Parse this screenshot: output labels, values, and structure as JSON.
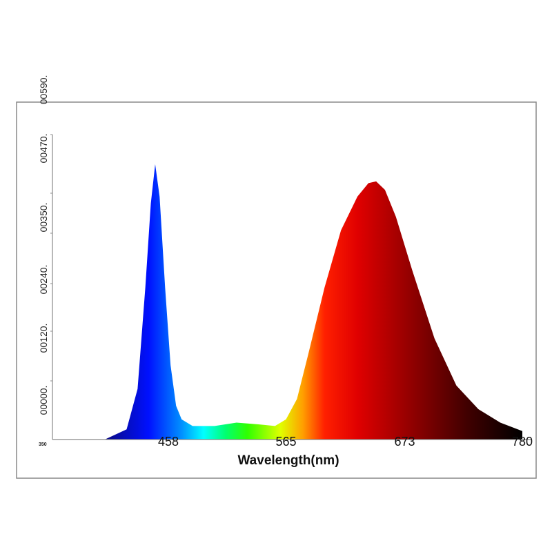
{
  "chart_data": {
    "type": "area",
    "title": "",
    "xlabel": "Wavelength(nm)",
    "ylabel": "",
    "xlim": [
      350,
      780
    ],
    "ylim": [
      0,
      1
    ],
    "grid": false,
    "x_ticks": [
      "458",
      "565",
      "673",
      "780"
    ],
    "x_tick_values": [
      458,
      565,
      673,
      780
    ],
    "x_min_label": "350",
    "y_ticks": [
      "00000.",
      "00120.",
      "00240.",
      "00350.",
      "00470.",
      "00590."
    ],
    "series": [
      {
        "x": [
          350,
          400,
          420,
          430,
          437,
          442,
          446,
          450,
          455,
          460,
          465,
          470,
          480,
          500,
          520,
          540,
          555,
          565,
          575,
          585,
          600,
          615,
          630,
          640,
          647,
          655,
          665,
          680,
          700,
          720,
          740,
          760,
          780
        ],
        "y": [
          0,
          0,
          0.03,
          0.15,
          0.45,
          0.7,
          0.816,
          0.72,
          0.45,
          0.22,
          0.1,
          0.06,
          0.04,
          0.04,
          0.05,
          0.045,
          0.04,
          0.06,
          0.12,
          0.25,
          0.45,
          0.62,
          0.72,
          0.76,
          0.765,
          0.74,
          0.66,
          0.5,
          0.3,
          0.16,
          0.09,
          0.05,
          0.025
        ]
      }
    ],
    "fill_gradient": [
      {
        "nm": 400,
        "color": "#0a0a80"
      },
      {
        "nm": 440,
        "color": "#0010ff"
      },
      {
        "nm": 470,
        "color": "#0090ff"
      },
      {
        "nm": 490,
        "color": "#00ffff"
      },
      {
        "nm": 510,
        "color": "#00ff70"
      },
      {
        "nm": 530,
        "color": "#30ff00"
      },
      {
        "nm": 560,
        "color": "#e0ff00"
      },
      {
        "nm": 580,
        "color": "#ffa000"
      },
      {
        "nm": 600,
        "color": "#ff2000"
      },
      {
        "nm": 630,
        "color": "#e00000"
      },
      {
        "nm": 680,
        "color": "#900000"
      },
      {
        "nm": 730,
        "color": "#400000"
      },
      {
        "nm": 780,
        "color": "#000000"
      }
    ]
  }
}
